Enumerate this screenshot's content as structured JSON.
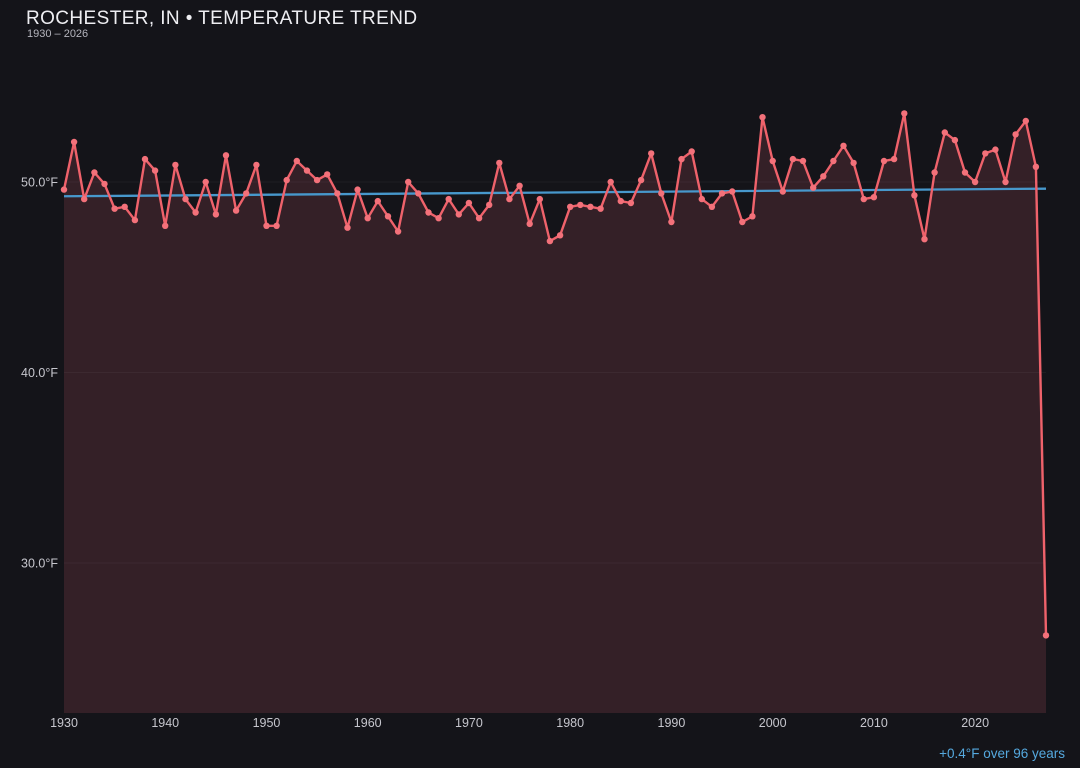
{
  "header": {
    "title": "ROCHESTER, IN • TEMPERATURE TREND",
    "subtitle": "1930 – 2026"
  },
  "footer": {
    "trend_note": "+0.4°F over 96 years"
  },
  "colors": {
    "background": "#141419",
    "series_line": "#ef626b",
    "data_point": "#f3717a",
    "area_fill": "#342027",
    "trend_line": "#4798cc",
    "trend_text": "#55a9df",
    "gridline": "rgba(255,255,255,0.045)",
    "title_text": "#eeeef2",
    "subtitle_text": "#b5b5bd",
    "tick_text": "#c6c6cd"
  },
  "chart_data": {
    "type": "line",
    "title": "ROCHESTER, IN • TEMPERATURE TREND",
    "subtitle": "1930 – 2026",
    "xlabel": "",
    "ylabel": "",
    "grid": "horizontal-faint",
    "legend_position": "none",
    "xlim": [
      1930,
      2027
    ],
    "ylim": [
      22,
      56
    ],
    "yticks": [
      {
        "value": 50,
        "label": "50.0°F"
      },
      {
        "value": 40,
        "label": "40.0°F"
      },
      {
        "value": 30,
        "label": "30.0°F"
      }
    ],
    "xticks": [
      {
        "value": 1930,
        "label": "1930"
      },
      {
        "value": 1940,
        "label": "1940"
      },
      {
        "value": 1950,
        "label": "1950"
      },
      {
        "value": 1960,
        "label": "1960"
      },
      {
        "value": 1970,
        "label": "1970"
      },
      {
        "value": 1980,
        "label": "1980"
      },
      {
        "value": 1990,
        "label": "1990"
      },
      {
        "value": 2000,
        "label": "2000"
      },
      {
        "value": 2010,
        "label": "2010"
      },
      {
        "value": 2020,
        "label": "2020"
      }
    ],
    "years": [
      1930,
      1931,
      1932,
      1933,
      1934,
      1935,
      1936,
      1937,
      1938,
      1939,
      1940,
      1941,
      1942,
      1943,
      1944,
      1945,
      1946,
      1947,
      1948,
      1949,
      1950,
      1951,
      1952,
      1953,
      1954,
      1955,
      1956,
      1957,
      1958,
      1959,
      1960,
      1961,
      1962,
      1963,
      1964,
      1965,
      1966,
      1967,
      1968,
      1969,
      1970,
      1971,
      1972,
      1973,
      1974,
      1975,
      1976,
      1977,
      1978,
      1979,
      1980,
      1981,
      1982,
      1983,
      1984,
      1985,
      1986,
      1987,
      1988,
      1989,
      1990,
      1991,
      1992,
      1993,
      1994,
      1995,
      1996,
      1997,
      1998,
      1999,
      2000,
      2001,
      2002,
      2003,
      2004,
      2005,
      2006,
      2007,
      2008,
      2009,
      2010,
      2011,
      2012,
      2013,
      2014,
      2015,
      2016,
      2017,
      2018,
      2019,
      2020,
      2021,
      2022,
      2023,
      2024,
      2025,
      2026,
      2027
    ],
    "values": [
      49.6,
      52.1,
      49.1,
      50.5,
      49.9,
      48.6,
      48.7,
      48.0,
      51.2,
      50.6,
      47.7,
      50.9,
      49.1,
      48.4,
      50.0,
      48.3,
      51.4,
      48.5,
      49.4,
      50.9,
      47.7,
      47.7,
      50.1,
      51.1,
      50.6,
      50.1,
      50.4,
      49.4,
      47.6,
      49.6,
      48.1,
      49.0,
      48.2,
      47.4,
      50.0,
      49.4,
      48.4,
      48.1,
      49.1,
      48.3,
      48.9,
      48.1,
      48.8,
      51.0,
      49.1,
      49.8,
      47.8,
      49.1,
      46.9,
      47.2,
      48.7,
      48.8,
      48.7,
      48.6,
      50.0,
      49.0,
      48.9,
      50.1,
      51.5,
      49.4,
      47.9,
      51.2,
      51.6,
      49.1,
      48.7,
      49.4,
      49.5,
      47.9,
      48.2,
      53.4,
      51.1,
      49.5,
      51.2,
      51.1,
      49.7,
      50.3,
      51.1,
      51.9,
      51.0,
      49.1,
      49.2,
      51.1,
      51.2,
      53.6,
      49.3,
      47.0,
      50.5,
      52.6,
      52.2,
      50.5,
      50.0,
      51.5,
      51.7,
      50.0,
      52.5,
      53.2,
      50.8,
      26.2
    ],
    "trend_line": {
      "start_value": 49.25,
      "end_value": 49.65,
      "label": "+0.4°F over 96 years"
    }
  }
}
